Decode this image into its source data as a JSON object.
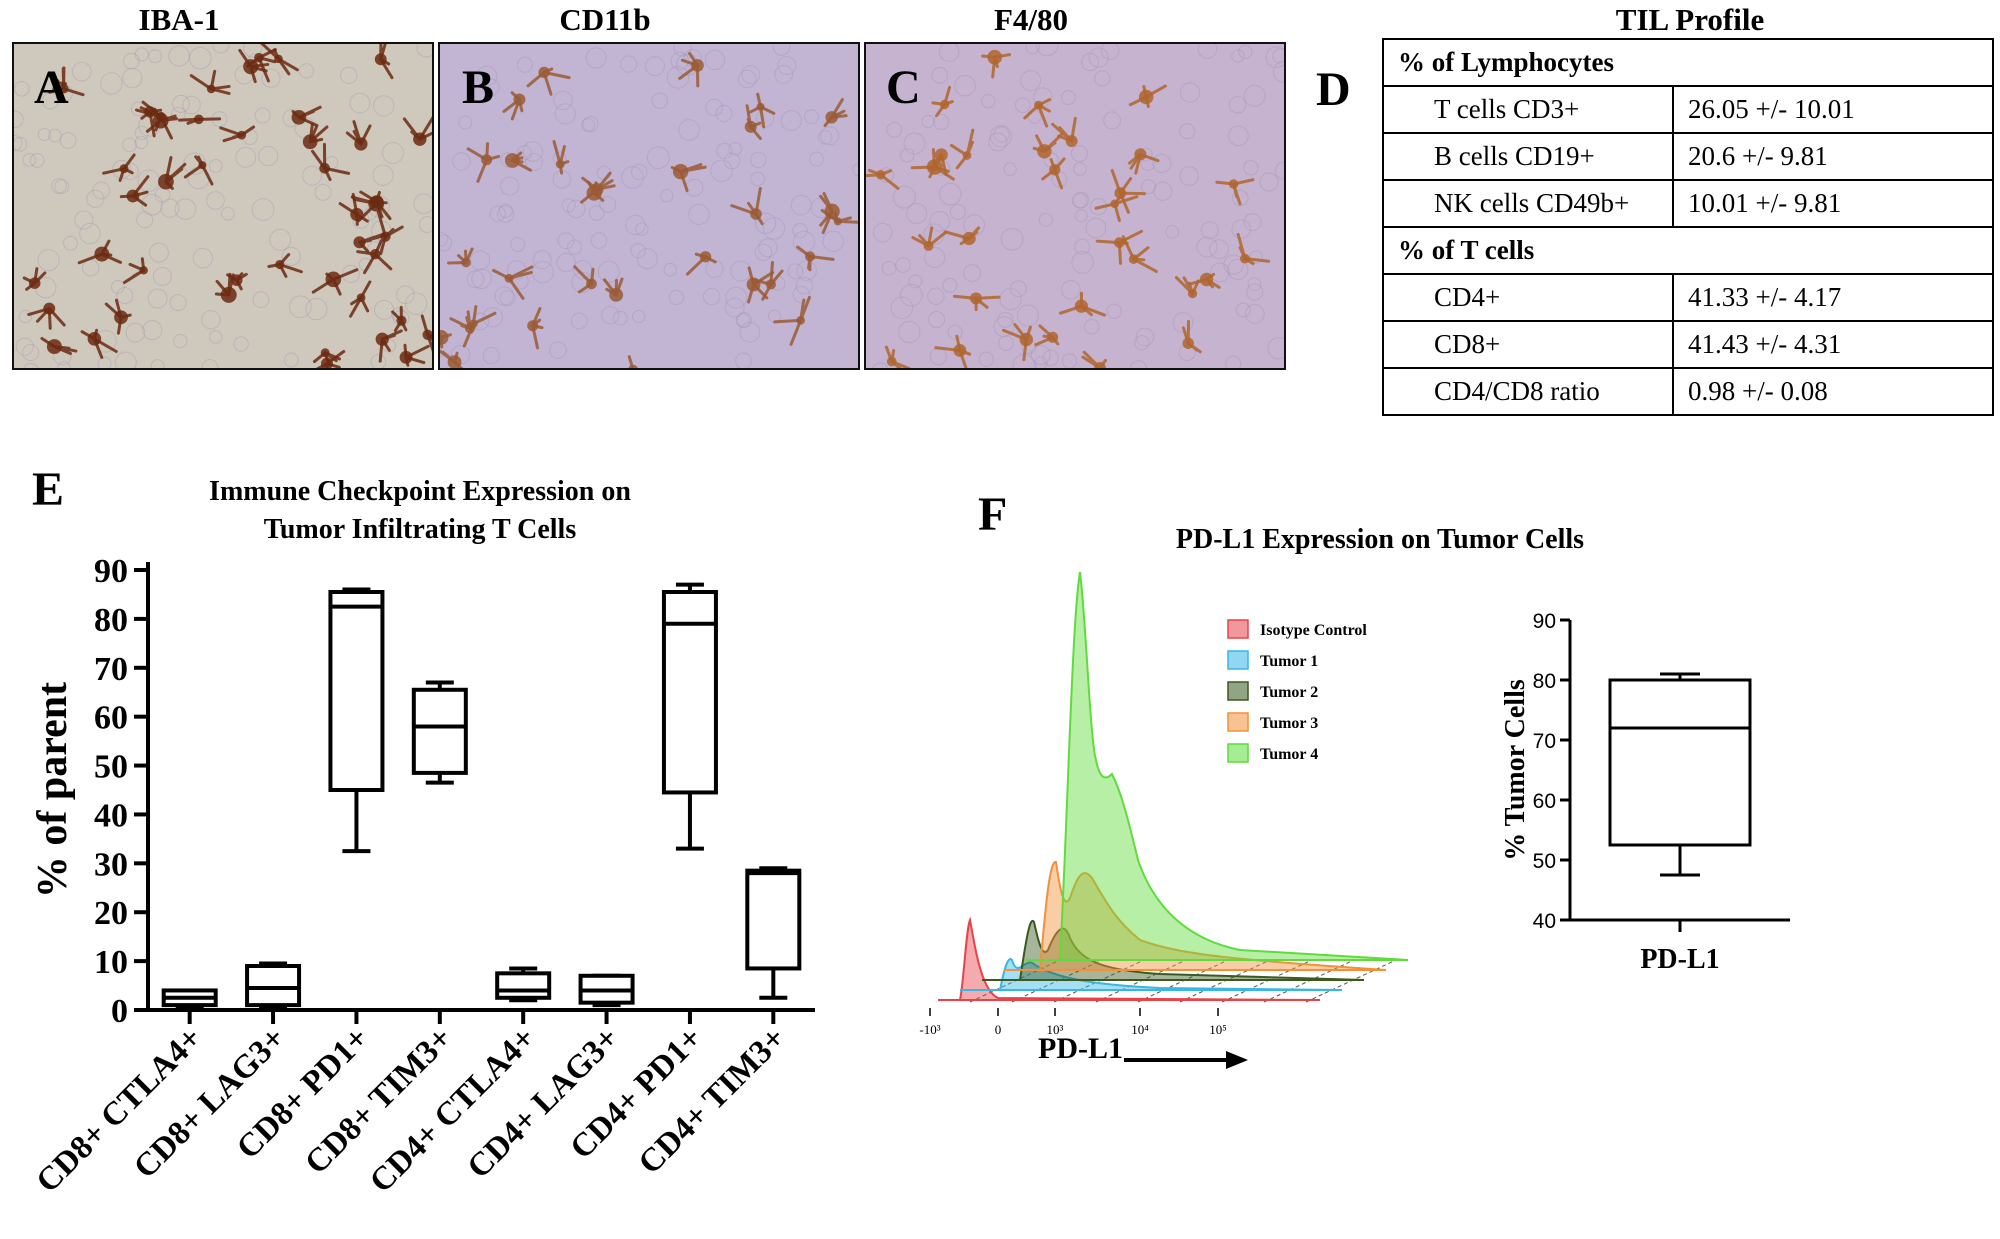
{
  "panel_labels": {
    "A": "A",
    "B": "B",
    "C": "C",
    "D": "D",
    "E": "E",
    "F": "F"
  },
  "micrographs": [
    {
      "title": "IBA-1",
      "stain_color": "#6b2a10",
      "background": "#cfc8bd"
    },
    {
      "title": "CD11b",
      "stain_color": "#9a5a34",
      "background": "#c2b4d3"
    },
    {
      "title": "F4/80",
      "stain_color": "#b0652e",
      "background": "#c5b3cf"
    }
  ],
  "til_table": {
    "title": "TIL Profile",
    "section1": {
      "header": "% of Lymphocytes",
      "rows": [
        {
          "label": "T cells  CD3+",
          "value": "26.05 +/- 10.01"
        },
        {
          "label": "B cells  CD19+",
          "value": "20.6 +/- 9.81"
        },
        {
          "label": "NK cells CD49b+",
          "value": "10.01 +/- 9.81"
        }
      ]
    },
    "section2": {
      "header": "% of T cells",
      "rows": [
        {
          "label": "CD4+",
          "value": "41.33 +/- 4.17"
        },
        {
          "label": "CD8+",
          "value": "41.43 +/- 4.31"
        },
        {
          "label": "CD4/CD8 ratio",
          "value": "0.98 +/- 0.08"
        }
      ]
    }
  },
  "chart_data": [
    {
      "type": "box",
      "title": "Immune Checkpoint Expression on\nTumor Infiltrating T Cells",
      "title_line1": "Immune Checkpoint Expression on",
      "title_line2": "Tumor Infiltrating T Cells",
      "ylabel": "% of parent",
      "ylim": [
        0,
        90
      ],
      "yticks": [
        0,
        10,
        20,
        30,
        40,
        50,
        60,
        70,
        80,
        90
      ],
      "categories": [
        "CD8+ CTLA4+",
        "CD8+ LAG3+",
        "CD8+ PD1+",
        "CD8+ TIM3+",
        "CD4+ CTLA4+",
        "CD4+ LAG3+",
        "CD4+ PD1+",
        "CD4+ TIM3+"
      ],
      "boxes": [
        {
          "min": 0.5,
          "q1": 1,
          "median": 2.5,
          "q3": 4,
          "max": 4
        },
        {
          "min": 0.5,
          "q1": 1,
          "median": 4.5,
          "q3": 9,
          "max": 9.5
        },
        {
          "min": 32.5,
          "q1": 45,
          "median": 82.5,
          "q3": 85.5,
          "max": 86
        },
        {
          "min": 46.5,
          "q1": 48.5,
          "median": 58,
          "q3": 65.5,
          "max": 67
        },
        {
          "min": 2,
          "q1": 2.5,
          "median": 4,
          "q3": 7.5,
          "max": 8.5
        },
        {
          "min": 1,
          "q1": 1.5,
          "median": 4,
          "q3": 7,
          "max": 7
        },
        {
          "min": 33,
          "q1": 44.5,
          "median": 79,
          "q3": 85.5,
          "max": 87
        },
        {
          "min": 2.5,
          "q1": 8.5,
          "median": 28,
          "q3": 28.5,
          "max": 29
        }
      ]
    },
    {
      "type": "area",
      "title": "PD-L1 Expression on Tumor Cells",
      "xlabel": "PD-L1",
      "x_ticks": [
        "-10³",
        "0",
        "10³",
        "10⁴",
        "10⁵"
      ],
      "series": [
        {
          "name": "Isotype Control",
          "color": "#e8424a"
        },
        {
          "name": "Tumor 1",
          "color": "#36b7e6"
        },
        {
          "name": "Tumor 2",
          "color": "#3b5a1f"
        },
        {
          "name": "Tumor 3",
          "color": "#f2913a"
        },
        {
          "name": "Tumor 4",
          "color": "#5fdc3c"
        }
      ]
    },
    {
      "type": "box",
      "ylabel": "% Tumor Cells",
      "ylim": [
        40,
        90
      ],
      "yticks": [
        40,
        50,
        60,
        70,
        80,
        90
      ],
      "categories": [
        "PD-L1"
      ],
      "boxes": [
        {
          "min": 47.5,
          "q1": 52.5,
          "median": 72,
          "q3": 80,
          "max": 81
        }
      ]
    }
  ]
}
